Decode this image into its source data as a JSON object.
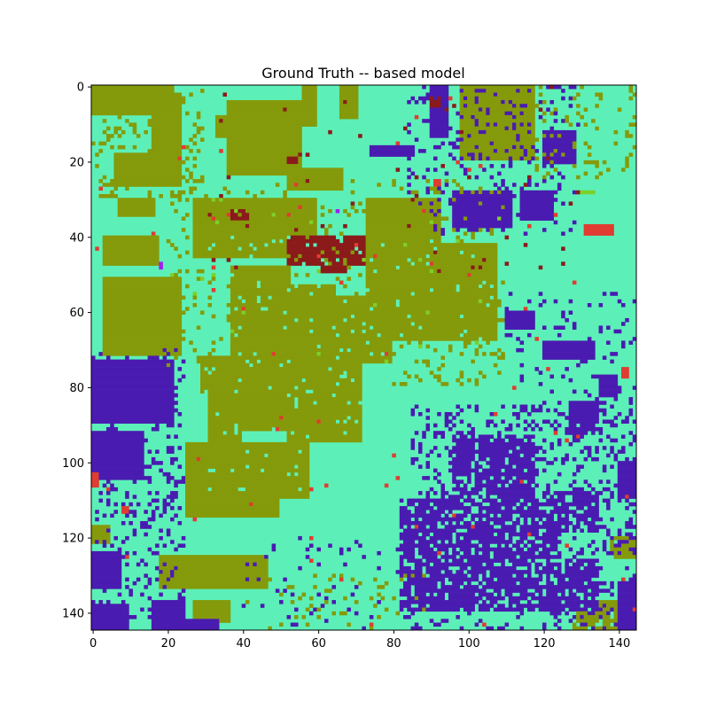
{
  "chart_data": {
    "type": "heatmap",
    "title": "Ground Truth -- based model",
    "xlabel": "",
    "ylabel": "",
    "grid": false,
    "image_size": [
      145,
      145
    ],
    "xlim": [
      -0.5,
      144.5
    ],
    "ylim": [
      144.5,
      -0.5
    ],
    "x_ticks": [
      0,
      20,
      40,
      60,
      80,
      100,
      120,
      140
    ],
    "y_ticks": [
      0,
      20,
      40,
      60,
      80,
      100,
      120,
      140
    ],
    "palette": {
      "background": "#5cf0b8",
      "olive": "#859a0a",
      "indigo": "#4a1bb0",
      "maroon": "#8b1a1a",
      "red": "#e03c31",
      "violet": "#a020f0",
      "lime": "#7cd02a"
    },
    "class_order": [
      "background",
      "olive",
      "indigo",
      "maroon",
      "red",
      "violet",
      "lime"
    ],
    "regions": [
      {
        "class": "olive",
        "x0": 0,
        "y0": 0,
        "x1": 22,
        "y1": 8
      },
      {
        "class": "olive",
        "x0": 16,
        "y0": 2,
        "x1": 24,
        "y1": 18
      },
      {
        "class": "olive",
        "x0": 6,
        "y0": 18,
        "x1": 24,
        "y1": 27
      },
      {
        "class": "olive",
        "x0": 36,
        "y0": 4,
        "x1": 56,
        "y1": 24
      },
      {
        "class": "olive",
        "x0": 33,
        "y0": 8,
        "x1": 41,
        "y1": 14
      },
      {
        "class": "olive",
        "x0": 56,
        "y0": 0,
        "x1": 60,
        "y1": 11
      },
      {
        "class": "olive",
        "x0": 66,
        "y0": 0,
        "x1": 71,
        "y1": 9
      },
      {
        "class": "olive",
        "x0": 52,
        "y0": 22,
        "x1": 67,
        "y1": 28
      },
      {
        "class": "olive",
        "x0": 98,
        "y0": 0,
        "x1": 118,
        "y1": 20
      },
      {
        "class": "olive",
        "x0": 7,
        "y0": 30,
        "x1": 17,
        "y1": 35
      },
      {
        "class": "olive",
        "x0": 27,
        "y0": 30,
        "x1": 60,
        "y1": 46
      },
      {
        "class": "olive",
        "x0": 73,
        "y0": 30,
        "x1": 93,
        "y1": 48
      },
      {
        "class": "olive",
        "x0": 73,
        "y0": 42,
        "x1": 108,
        "y1": 68
      },
      {
        "class": "olive",
        "x0": 97,
        "y0": 42,
        "x1": 108,
        "y1": 63
      },
      {
        "class": "olive",
        "x0": 3,
        "y0": 40,
        "x1": 18,
        "y1": 48
      },
      {
        "class": "olive",
        "x0": 3,
        "y0": 51,
        "x1": 24,
        "y1": 72
      },
      {
        "class": "olive",
        "x0": 37,
        "y0": 48,
        "x1": 53,
        "y1": 92
      },
      {
        "class": "olive",
        "x0": 53,
        "y0": 53,
        "x1": 65,
        "y1": 70
      },
      {
        "class": "olive",
        "x0": 55,
        "y0": 56,
        "x1": 75,
        "y1": 73
      },
      {
        "class": "olive",
        "x0": 65,
        "y0": 65,
        "x1": 80,
        "y1": 74
      },
      {
        "class": "olive",
        "x0": 52,
        "y0": 70,
        "x1": 72,
        "y1": 95
      },
      {
        "class": "olive",
        "x0": 29,
        "y0": 72,
        "x1": 41,
        "y1": 82
      },
      {
        "class": "olive",
        "x0": 31,
        "y0": 82,
        "x1": 40,
        "y1": 95
      },
      {
        "class": "olive",
        "x0": 25,
        "y0": 95,
        "x1": 50,
        "y1": 115
      },
      {
        "class": "olive",
        "x0": 50,
        "y0": 95,
        "x1": 58,
        "y1": 110
      },
      {
        "class": "olive",
        "x0": 18,
        "y0": 125,
        "x1": 47,
        "y1": 134
      },
      {
        "class": "olive",
        "x0": 0,
        "y0": 117,
        "x1": 5,
        "y1": 122
      },
      {
        "class": "olive",
        "x0": 27,
        "y0": 137,
        "x1": 37,
        "y1": 143
      },
      {
        "class": "olive",
        "x0": 128,
        "y0": 137,
        "x1": 142,
        "y1": 145
      },
      {
        "class": "olive",
        "x0": 138,
        "y0": 120,
        "x1": 145,
        "y1": 126
      },
      {
        "class": "indigo",
        "x0": 0,
        "y0": 73,
        "x1": 22,
        "y1": 90
      },
      {
        "class": "indigo",
        "x0": 0,
        "y0": 92,
        "x1": 14,
        "y1": 105
      },
      {
        "class": "indigo",
        "x0": 0,
        "y0": 124,
        "x1": 8,
        "y1": 134
      },
      {
        "class": "indigo",
        "x0": 0,
        "y0": 138,
        "x1": 10,
        "y1": 145
      },
      {
        "class": "indigo",
        "x0": 16,
        "y0": 137,
        "x1": 25,
        "y1": 145
      },
      {
        "class": "indigo",
        "x0": 22,
        "y0": 142,
        "x1": 34,
        "y1": 145
      },
      {
        "class": "indigo",
        "x0": 82,
        "y0": 110,
        "x1": 124,
        "y1": 140
      },
      {
        "class": "indigo",
        "x0": 96,
        "y0": 93,
        "x1": 118,
        "y1": 114
      },
      {
        "class": "indigo",
        "x0": 120,
        "y0": 108,
        "x1": 135,
        "y1": 119
      },
      {
        "class": "indigo",
        "x0": 118,
        "y0": 126,
        "x1": 135,
        "y1": 140
      },
      {
        "class": "indigo",
        "x0": 140,
        "y0": 132,
        "x1": 145,
        "y1": 145
      },
      {
        "class": "indigo",
        "x0": 96,
        "y0": 28,
        "x1": 112,
        "y1": 38
      },
      {
        "class": "indigo",
        "x0": 114,
        "y0": 28,
        "x1": 123,
        "y1": 36
      },
      {
        "class": "indigo",
        "x0": 120,
        "y0": 12,
        "x1": 129,
        "y1": 21
      },
      {
        "class": "indigo",
        "x0": 90,
        "y0": 0,
        "x1": 95,
        "y1": 14
      },
      {
        "class": "indigo",
        "x0": 74,
        "y0": 16,
        "x1": 86,
        "y1": 19
      },
      {
        "class": "indigo",
        "x0": 120,
        "y0": 68,
        "x1": 134,
        "y1": 73
      },
      {
        "class": "indigo",
        "x0": 127,
        "y0": 84,
        "x1": 135,
        "y1": 93
      },
      {
        "class": "indigo",
        "x0": 135,
        "y0": 77,
        "x1": 140,
        "y1": 83
      },
      {
        "class": "indigo",
        "x0": 110,
        "y0": 60,
        "x1": 118,
        "y1": 65
      },
      {
        "class": "indigo",
        "x0": 140,
        "y0": 100,
        "x1": 145,
        "y1": 110
      },
      {
        "class": "maroon",
        "x0": 52,
        "y0": 40,
        "x1": 73,
        "y1": 48
      },
      {
        "class": "maroon",
        "x0": 61,
        "y0": 46,
        "x1": 68,
        "y1": 50
      },
      {
        "class": "maroon",
        "x0": 60,
        "y0": 40,
        "x1": 70,
        "y1": 42
      },
      {
        "class": "maroon",
        "x0": 52,
        "y0": 19,
        "x1": 55,
        "y1": 21
      },
      {
        "class": "maroon",
        "x0": 90,
        "y0": 3,
        "x1": 93,
        "y1": 6
      },
      {
        "class": "maroon",
        "x0": 37,
        "y0": 33,
        "x1": 42,
        "y1": 36
      },
      {
        "class": "red",
        "x0": 131,
        "y0": 37,
        "x1": 139,
        "y1": 40
      },
      {
        "class": "red",
        "x0": 91,
        "y0": 25,
        "x1": 93,
        "y1": 28
      },
      {
        "class": "red",
        "x0": 0,
        "y0": 103,
        "x1": 2,
        "y1": 107
      },
      {
        "class": "red",
        "x0": 141,
        "y0": 75,
        "x1": 143,
        "y1": 78
      },
      {
        "class": "red",
        "x0": 8,
        "y0": 112,
        "x1": 10,
        "y1": 114
      },
      {
        "class": "violet",
        "x0": 18,
        "y0": 47,
        "x1": 19,
        "y1": 49
      },
      {
        "class": "violet",
        "x0": 65,
        "y0": 33,
        "x1": 66,
        "y1": 34
      },
      {
        "class": "lime",
        "x0": 128,
        "y0": 28,
        "x1": 134,
        "y1": 29
      }
    ],
    "speckle": [
      {
        "class": "olive",
        "x0": 0,
        "y0": 0,
        "x1": 30,
        "y1": 30,
        "density": 0.18
      },
      {
        "class": "olive",
        "x0": 20,
        "y0": 25,
        "x1": 110,
        "y1": 75,
        "density": 0.08
      },
      {
        "class": "olive",
        "x0": 80,
        "y0": 60,
        "x1": 110,
        "y1": 80,
        "density": 0.12
      },
      {
        "class": "olive",
        "x0": 118,
        "y0": 0,
        "x1": 145,
        "y1": 25,
        "density": 0.12
      },
      {
        "class": "olive",
        "x0": 40,
        "y0": 130,
        "x1": 90,
        "y1": 145,
        "density": 0.08
      },
      {
        "class": "indigo",
        "x0": 0,
        "y0": 70,
        "x1": 25,
        "y1": 145,
        "density": 0.18
      },
      {
        "class": "indigo",
        "x0": 85,
        "y0": 85,
        "x1": 145,
        "y1": 145,
        "density": 0.22
      },
      {
        "class": "indigo",
        "x0": 84,
        "y0": 0,
        "x1": 130,
        "y1": 40,
        "density": 0.12
      },
      {
        "class": "indigo",
        "x0": 110,
        "y0": 55,
        "x1": 145,
        "y1": 100,
        "density": 0.1
      },
      {
        "class": "indigo",
        "x0": 40,
        "y0": 120,
        "x1": 85,
        "y1": 145,
        "density": 0.05
      },
      {
        "class": "background",
        "x0": 82,
        "y0": 90,
        "x1": 140,
        "y1": 145,
        "density": 0.2
      },
      {
        "class": "background",
        "x0": 30,
        "y0": 40,
        "x1": 110,
        "y1": 110,
        "density": 0.04
      },
      {
        "class": "red",
        "x0": 0,
        "y0": 0,
        "x1": 145,
        "y1": 145,
        "density": 0.003
      },
      {
        "class": "maroon",
        "x0": 30,
        "y0": 0,
        "x1": 130,
        "y1": 50,
        "density": 0.01
      },
      {
        "class": "lime",
        "x0": 20,
        "y0": 30,
        "x1": 110,
        "y1": 80,
        "density": 0.006
      }
    ]
  }
}
